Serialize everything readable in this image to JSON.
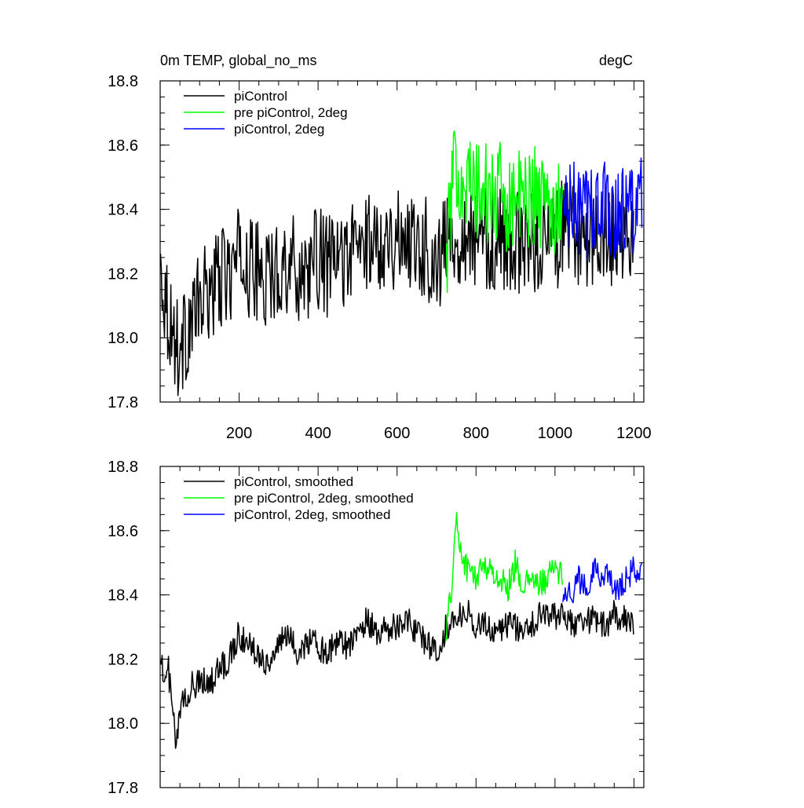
{
  "chart_data": [
    {
      "type": "line",
      "title": "0m TEMP, global_no_ms",
      "units": "degC",
      "xlim": [
        0,
        1225
      ],
      "ylim": [
        17.8,
        18.8
      ],
      "xticks": [
        200,
        400,
        600,
        800,
        1000,
        1200
      ],
      "xtick_labels": [
        "200",
        "400",
        "600",
        "800",
        "1000",
        "1200"
      ],
      "yticks": [
        17.8,
        18.0,
        18.2,
        18.4,
        18.6,
        18.8
      ],
      "ytick_labels": [
        "17.8",
        "18.0",
        "18.2",
        "18.4",
        "18.6",
        "18.8"
      ],
      "grid": false,
      "legend_position": "top-left",
      "series": [
        {
          "name": "piControl",
          "color": "#000000",
          "x": [
            1,
            25,
            50,
            75,
            100,
            125,
            150,
            175,
            200,
            225,
            250,
            275,
            300,
            325,
            350,
            375,
            400,
            425,
            450,
            475,
            500,
            525,
            550,
            575,
            600,
            625,
            650,
            675,
            700,
            725,
            750,
            775,
            800,
            825,
            850,
            875,
            900,
            925,
            950,
            975,
            1000,
            1025,
            1050,
            1075,
            1100,
            1125,
            1150,
            1175,
            1200
          ],
          "values": [
            18.22,
            18.05,
            17.95,
            18.05,
            18.1,
            18.15,
            18.18,
            18.2,
            18.25,
            18.22,
            18.2,
            18.18,
            18.22,
            18.24,
            18.2,
            18.22,
            18.25,
            18.22,
            18.24,
            18.26,
            18.28,
            18.3,
            18.3,
            18.32,
            18.3,
            18.32,
            18.3,
            18.28,
            18.22,
            18.3,
            18.32,
            18.33,
            18.3,
            18.31,
            18.3,
            18.31,
            18.3,
            18.28,
            18.3,
            18.32,
            18.3,
            18.35,
            18.32,
            18.3,
            18.33,
            18.31,
            18.32,
            18.33,
            18.3
          ]
        },
        {
          "name": "pre piControl, 2deg",
          "color": "#00ff00",
          "x": [
            725,
            735,
            750,
            765,
            780,
            800,
            820,
            840,
            860,
            880,
            900,
            920,
            940,
            960,
            980,
            1000,
            1020
          ],
          "values": [
            18.25,
            18.4,
            18.55,
            18.5,
            18.48,
            18.45,
            18.45,
            18.43,
            18.45,
            18.42,
            18.44,
            18.42,
            18.45,
            18.44,
            18.42,
            18.42,
            18.43
          ]
        },
        {
          "name": "piControl, 2deg",
          "color": "#0000ff",
          "x": [
            1020,
            1040,
            1060,
            1080,
            1100,
            1120,
            1140,
            1160,
            1180,
            1200,
            1220
          ],
          "values": [
            18.4,
            18.39,
            18.4,
            18.38,
            18.42,
            18.4,
            18.41,
            18.38,
            18.4,
            18.42,
            18.4
          ]
        }
      ]
    },
    {
      "type": "line",
      "title": "",
      "units": "",
      "xlim": [
        0,
        1225
      ],
      "ylim": [
        17.8,
        18.8
      ],
      "xticks": [
        200,
        400,
        600,
        800,
        1000,
        1200
      ],
      "xtick_labels": [],
      "yticks": [
        17.8,
        18.0,
        18.2,
        18.4,
        18.6,
        18.8
      ],
      "ytick_labels": [
        "17.8",
        "18.0",
        "18.2",
        "18.4",
        "18.6",
        "18.8"
      ],
      "grid": false,
      "legend_position": "top-left",
      "series": [
        {
          "name": "piControl, smoothed",
          "color": "#000000",
          "x": [
            1,
            10,
            20,
            30,
            40,
            50,
            60,
            70,
            80,
            90,
            100,
            125,
            150,
            175,
            200,
            225,
            250,
            275,
            300,
            325,
            350,
            375,
            400,
            425,
            450,
            475,
            500,
            525,
            550,
            575,
            600,
            625,
            650,
            675,
            700,
            725,
            750,
            775,
            800,
            825,
            850,
            875,
            900,
            925,
            950,
            975,
            1000,
            1025,
            1050,
            1075,
            1100,
            1125,
            1150,
            1175,
            1200
          ],
          "values": [
            18.24,
            18.1,
            18.18,
            18.05,
            17.93,
            18.02,
            18.08,
            18.05,
            18.15,
            18.1,
            18.15,
            18.12,
            18.17,
            18.2,
            18.28,
            18.24,
            18.22,
            18.18,
            18.25,
            18.27,
            18.22,
            18.26,
            18.24,
            18.22,
            18.26,
            18.24,
            18.3,
            18.32,
            18.28,
            18.3,
            18.3,
            18.33,
            18.28,
            18.25,
            18.22,
            18.3,
            18.33,
            18.35,
            18.3,
            18.32,
            18.28,
            18.31,
            18.3,
            18.29,
            18.32,
            18.35,
            18.33,
            18.34,
            18.3,
            18.32,
            18.33,
            18.3,
            18.34,
            18.33,
            18.3
          ]
        },
        {
          "name": "pre piControl, 2deg, smoothed",
          "color": "#00ff00",
          "x": [
            725,
            735,
            745,
            750,
            760,
            770,
            780,
            800,
            820,
            840,
            860,
            880,
            900,
            920,
            940,
            960,
            980,
            1000,
            1020
          ],
          "values": [
            18.3,
            18.38,
            18.55,
            18.63,
            18.55,
            18.5,
            18.48,
            18.45,
            18.5,
            18.47,
            18.45,
            18.42,
            18.5,
            18.42,
            18.45,
            18.43,
            18.45,
            18.48,
            18.47
          ]
        },
        {
          "name": "piControl, 2deg, smoothed",
          "color": "#0000ff",
          "x": [
            1020,
            1040,
            1060,
            1080,
            1100,
            1120,
            1140,
            1160,
            1180,
            1200,
            1220
          ],
          "values": [
            18.42,
            18.4,
            18.45,
            18.42,
            18.5,
            18.44,
            18.46,
            18.4,
            18.45,
            18.48,
            18.46
          ]
        }
      ]
    }
  ]
}
